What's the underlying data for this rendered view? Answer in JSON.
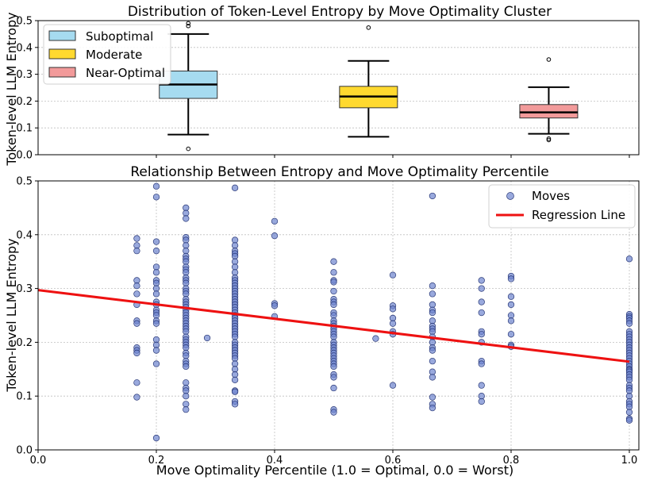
{
  "chart_data": [
    {
      "type": "box",
      "title": "Distribution of Token-Level Entropy by Move Optimality Cluster",
      "ylabel": "Token-level LLM Entropy",
      "ylim": [
        0,
        0.5
      ],
      "yticks": [
        "0.0",
        "0.1",
        "0.2",
        "0.3",
        "0.4",
        "0.5"
      ],
      "legend_position": "top-left",
      "boxes": [
        {
          "name": "Suboptimal",
          "color": "#a6dbf0",
          "x": 0.25,
          "whisker_low": 0.075,
          "q1": 0.21,
          "median": 0.262,
          "q3": 0.312,
          "whisker_high": 0.45,
          "outliers": [
            0.48,
            0.49,
            0.022
          ]
        },
        {
          "name": "Moderate",
          "color": "#ffd92f",
          "x": 0.55,
          "whisker_low": 0.067,
          "q1": 0.175,
          "median": 0.217,
          "q3": 0.255,
          "whisker_high": 0.35,
          "outliers": [
            0.474
          ]
        },
        {
          "name": "Near-Optimal",
          "color": "#f29a9a",
          "x": 0.85,
          "whisker_low": 0.078,
          "q1": 0.137,
          "median": 0.158,
          "q3": 0.187,
          "whisker_high": 0.252,
          "outliers": [
            0.355,
            0.055,
            0.06
          ]
        }
      ]
    },
    {
      "type": "scatter",
      "title": "Relationship Between Entropy and Move Optimality Percentile",
      "xlabel": "Move Optimality Percentile (1.0 = Optimal, 0.0 = Worst)",
      "ylabel": "Token-level LLM Entropy",
      "xlim": [
        0,
        1.0
      ],
      "ylim": [
        0,
        0.5
      ],
      "xticks": [
        "0.0",
        "0.2",
        "0.4",
        "0.6",
        "0.8",
        "1.0"
      ],
      "yticks": [
        "0.0",
        "0.1",
        "0.2",
        "0.3",
        "0.4",
        "0.5"
      ],
      "legend_position": "top-right",
      "series": [
        {
          "name": "Moves",
          "color": "#6d84cf",
          "columns": [
            {
              "x": 0.167,
              "y": [
                0.393,
                0.38,
                0.37,
                0.315,
                0.305,
                0.29,
                0.27,
                0.24,
                0.235,
                0.19,
                0.185,
                0.18,
                0.125,
                0.098
              ]
            },
            {
              "x": 0.2,
              "y": [
                0.49,
                0.47,
                0.387,
                0.37,
                0.34,
                0.33,
                0.315,
                0.31,
                0.3,
                0.29,
                0.275,
                0.27,
                0.26,
                0.255,
                0.25,
                0.24,
                0.235,
                0.205,
                0.195,
                0.185,
                0.16,
                0.022
              ]
            },
            {
              "x": 0.25,
              "y": [
                0.45,
                0.44,
                0.43,
                0.395,
                0.39,
                0.38,
                0.37,
                0.36,
                0.355,
                0.35,
                0.34,
                0.335,
                0.33,
                0.32,
                0.315,
                0.31,
                0.3,
                0.295,
                0.29,
                0.28,
                0.275,
                0.27,
                0.265,
                0.26,
                0.255,
                0.25,
                0.245,
                0.24,
                0.235,
                0.23,
                0.225,
                0.22,
                0.21,
                0.205,
                0.2,
                0.195,
                0.19,
                0.18,
                0.175,
                0.165,
                0.16,
                0.155,
                0.125,
                0.115,
                0.11,
                0.1,
                0.085,
                0.075
              ]
            },
            {
              "x": 0.286,
              "y": [
                0.208
              ]
            },
            {
              "x": 0.333,
              "y": [
                0.487,
                0.39,
                0.38,
                0.37,
                0.365,
                0.36,
                0.35,
                0.34,
                0.33,
                0.32,
                0.315,
                0.31,
                0.305,
                0.3,
                0.295,
                0.29,
                0.285,
                0.28,
                0.275,
                0.27,
                0.265,
                0.26,
                0.255,
                0.25,
                0.245,
                0.24,
                0.235,
                0.23,
                0.225,
                0.22,
                0.215,
                0.21,
                0.2,
                0.195,
                0.19,
                0.185,
                0.18,
                0.175,
                0.17,
                0.16,
                0.15,
                0.14,
                0.13,
                0.11,
                0.108,
                0.09,
                0.085
              ]
            },
            {
              "x": 0.4,
              "y": [
                0.425,
                0.398,
                0.272,
                0.268,
                0.248
              ]
            },
            {
              "x": 0.5,
              "y": [
                0.35,
                0.33,
                0.315,
                0.312,
                0.295,
                0.28,
                0.275,
                0.27,
                0.255,
                0.25,
                0.24,
                0.235,
                0.23,
                0.225,
                0.22,
                0.215,
                0.21,
                0.2,
                0.195,
                0.19,
                0.185,
                0.18,
                0.175,
                0.17,
                0.165,
                0.16,
                0.155,
                0.14,
                0.135,
                0.115,
                0.075,
                0.07
              ]
            },
            {
              "x": 0.571,
              "y": [
                0.207
              ]
            },
            {
              "x": 0.6,
              "y": [
                0.325,
                0.268,
                0.262,
                0.245,
                0.235,
                0.22,
                0.215,
                0.12
              ]
            },
            {
              "x": 0.667,
              "y": [
                0.472,
                0.305,
                0.29,
                0.27,
                0.26,
                0.255,
                0.24,
                0.23,
                0.225,
                0.22,
                0.21,
                0.2,
                0.19,
                0.185,
                0.165,
                0.145,
                0.135,
                0.098,
                0.085,
                0.078
              ]
            },
            {
              "x": 0.75,
              "y": [
                0.315,
                0.3,
                0.275,
                0.255,
                0.22,
                0.215,
                0.2,
                0.165,
                0.16,
                0.12,
                0.1,
                0.09
              ]
            },
            {
              "x": 0.8,
              "y": [
                0.323,
                0.318,
                0.285,
                0.27,
                0.25,
                0.24,
                0.215,
                0.195,
                0.192
              ]
            },
            {
              "x": 1.0,
              "y": [
                0.355,
                0.252,
                0.248,
                0.245,
                0.24,
                0.235,
                0.22,
                0.215,
                0.21,
                0.205,
                0.2,
                0.195,
                0.19,
                0.185,
                0.18,
                0.175,
                0.17,
                0.165,
                0.16,
                0.155,
                0.15,
                0.148,
                0.145,
                0.14,
                0.135,
                0.13,
                0.12,
                0.115,
                0.11,
                0.1,
                0.09,
                0.085,
                0.08,
                0.07,
                0.058,
                0.055
              ]
            }
          ]
        },
        {
          "name": "Regression Line",
          "color": "#ee1111",
          "line": {
            "x0": 0.0,
            "y0": 0.297,
            "x1": 1.0,
            "y1": 0.164
          }
        }
      ]
    }
  ]
}
